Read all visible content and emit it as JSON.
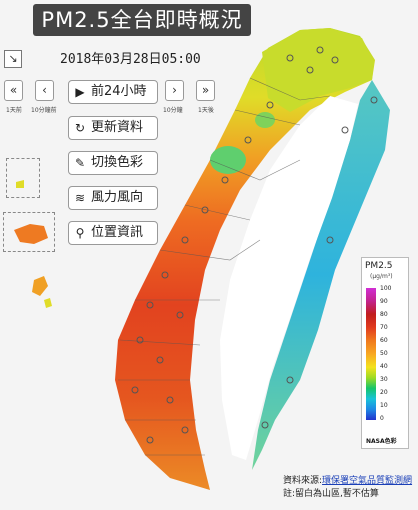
{
  "title": "PM2.5全台即時概況",
  "timestamp": "2018年03月28日05:00",
  "controls": {
    "corner_icon": "↘",
    "first_label": "1天前",
    "prev_label": "10分鐘前",
    "next_label": "10分鐘",
    "last_label": "1天後",
    "play_label": "前24小時",
    "refresh_label": "更新資料",
    "color_label": "切換色彩",
    "wind_label": "風力風向",
    "location_label": "位置資訊"
  },
  "legend": {
    "title": "PM2.5",
    "unit": "(μg/m³)",
    "ticks": [
      "100",
      "90",
      "80",
      "70",
      "60",
      "50",
      "40",
      "30",
      "20",
      "10",
      "0"
    ],
    "name": "NASA色彩"
  },
  "source": {
    "prefix": "資料來源:",
    "link": "環保署空氣品質監測網",
    "note": "註:留白為山區,暫不估算"
  },
  "colors": {
    "ocean": "#f4f4f4",
    "title_bg": "#444444",
    "link": "#1a3fb7"
  }
}
